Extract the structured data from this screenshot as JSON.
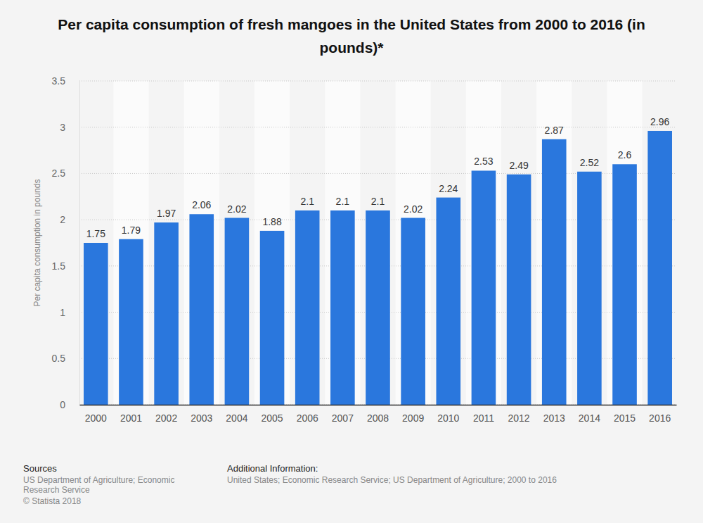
{
  "chart_data": {
    "type": "bar",
    "title": "Per capita consumption of fresh mangoes in the United States from 2000 to 2016 (in pounds)*",
    "y_label": "Per capita consumption in pounds",
    "categories": [
      "2000",
      "2001",
      "2002",
      "2003",
      "2004",
      "2005",
      "2006",
      "2007",
      "2008",
      "2009",
      "2010",
      "2011",
      "2012",
      "2013",
      "2014",
      "2015",
      "2016"
    ],
    "values": [
      1.75,
      1.79,
      1.97,
      2.06,
      2.02,
      1.88,
      2.1,
      2.1,
      2.1,
      2.02,
      2.24,
      2.53,
      2.49,
      2.87,
      2.52,
      2.6,
      2.96
    ],
    "color": "#2a77dd",
    "ylim": [
      0,
      3.5
    ],
    "yticks": [
      0,
      0.5,
      1,
      1.5,
      2,
      2.5,
      3,
      3.5
    ],
    "grid": true,
    "data_labels": true,
    "sources_title": "Sources",
    "sources": "US Department of Agriculture; Economic Research Service",
    "copyright": "© Statista 2018",
    "additional_info_title": "Additional Information:",
    "additional_info": "United States; Economic Research Service; US Department of Agriculture; 2000 to 2016"
  }
}
